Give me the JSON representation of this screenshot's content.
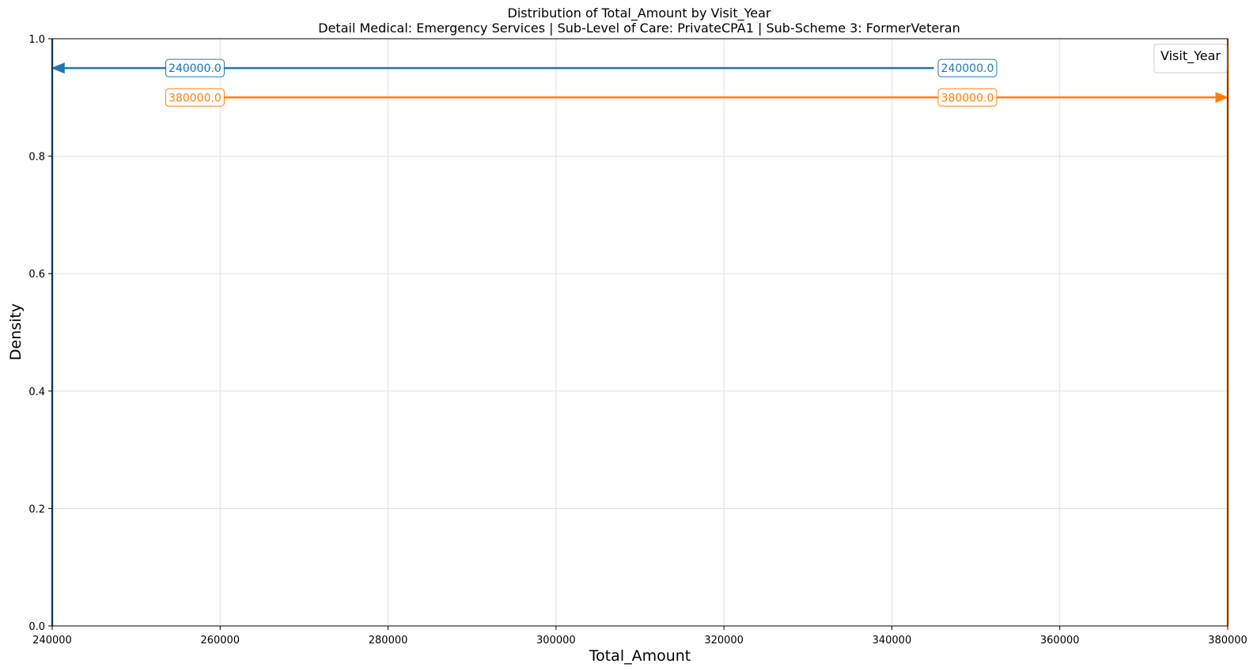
{
  "chart_data": {
    "type": "line",
    "title": "Distribution of Total_Amount by Visit_Year",
    "subtitle": "Detail Medical: Emergency Services | Sub-Level of Care: PrivateCPA1 | Sub-Scheme 3: FormerVeteran",
    "xlabel": "Total_Amount",
    "ylabel": "Density",
    "xlim": [
      240000,
      380000
    ],
    "ylim": [
      0,
      1.0
    ],
    "x_ticks": [
      240000,
      260000,
      280000,
      300000,
      320000,
      340000,
      360000,
      380000
    ],
    "x_tick_labels": [
      "240000",
      "260000",
      "280000",
      "300000",
      "320000",
      "340000",
      "360000",
      "380000"
    ],
    "y_ticks": [
      0,
      0.2,
      0.4,
      0.6,
      0.8,
      1.0
    ],
    "y_tick_labels": [
      "0.0",
      "0.2",
      "0.4",
      "0.6",
      "0.8",
      "1.0"
    ],
    "grid": true,
    "legend": {
      "title": "Visit_Year",
      "placement": "top-right",
      "entries": []
    },
    "series": [
      {
        "color": "#1f77b4",
        "vline_x": 240000,
        "arrow_y": 0.95,
        "arrow_from_x": 345000,
        "arrow_to_x": 240000,
        "labels": [
          {
            "text": "240000.0",
            "x": 257000,
            "y": 0.95
          },
          {
            "text": "240000.0",
            "x": 349000,
            "y": 0.95
          }
        ]
      },
      {
        "color": "#ff7f0e",
        "vline_x": 380000,
        "arrow_y": 0.9,
        "arrow_from_x": 260000,
        "arrow_to_x": 380000,
        "labels": [
          {
            "text": "380000.0",
            "x": 257000,
            "y": 0.9
          },
          {
            "text": "380000.0",
            "x": 349000,
            "y": 0.9
          }
        ]
      }
    ]
  }
}
